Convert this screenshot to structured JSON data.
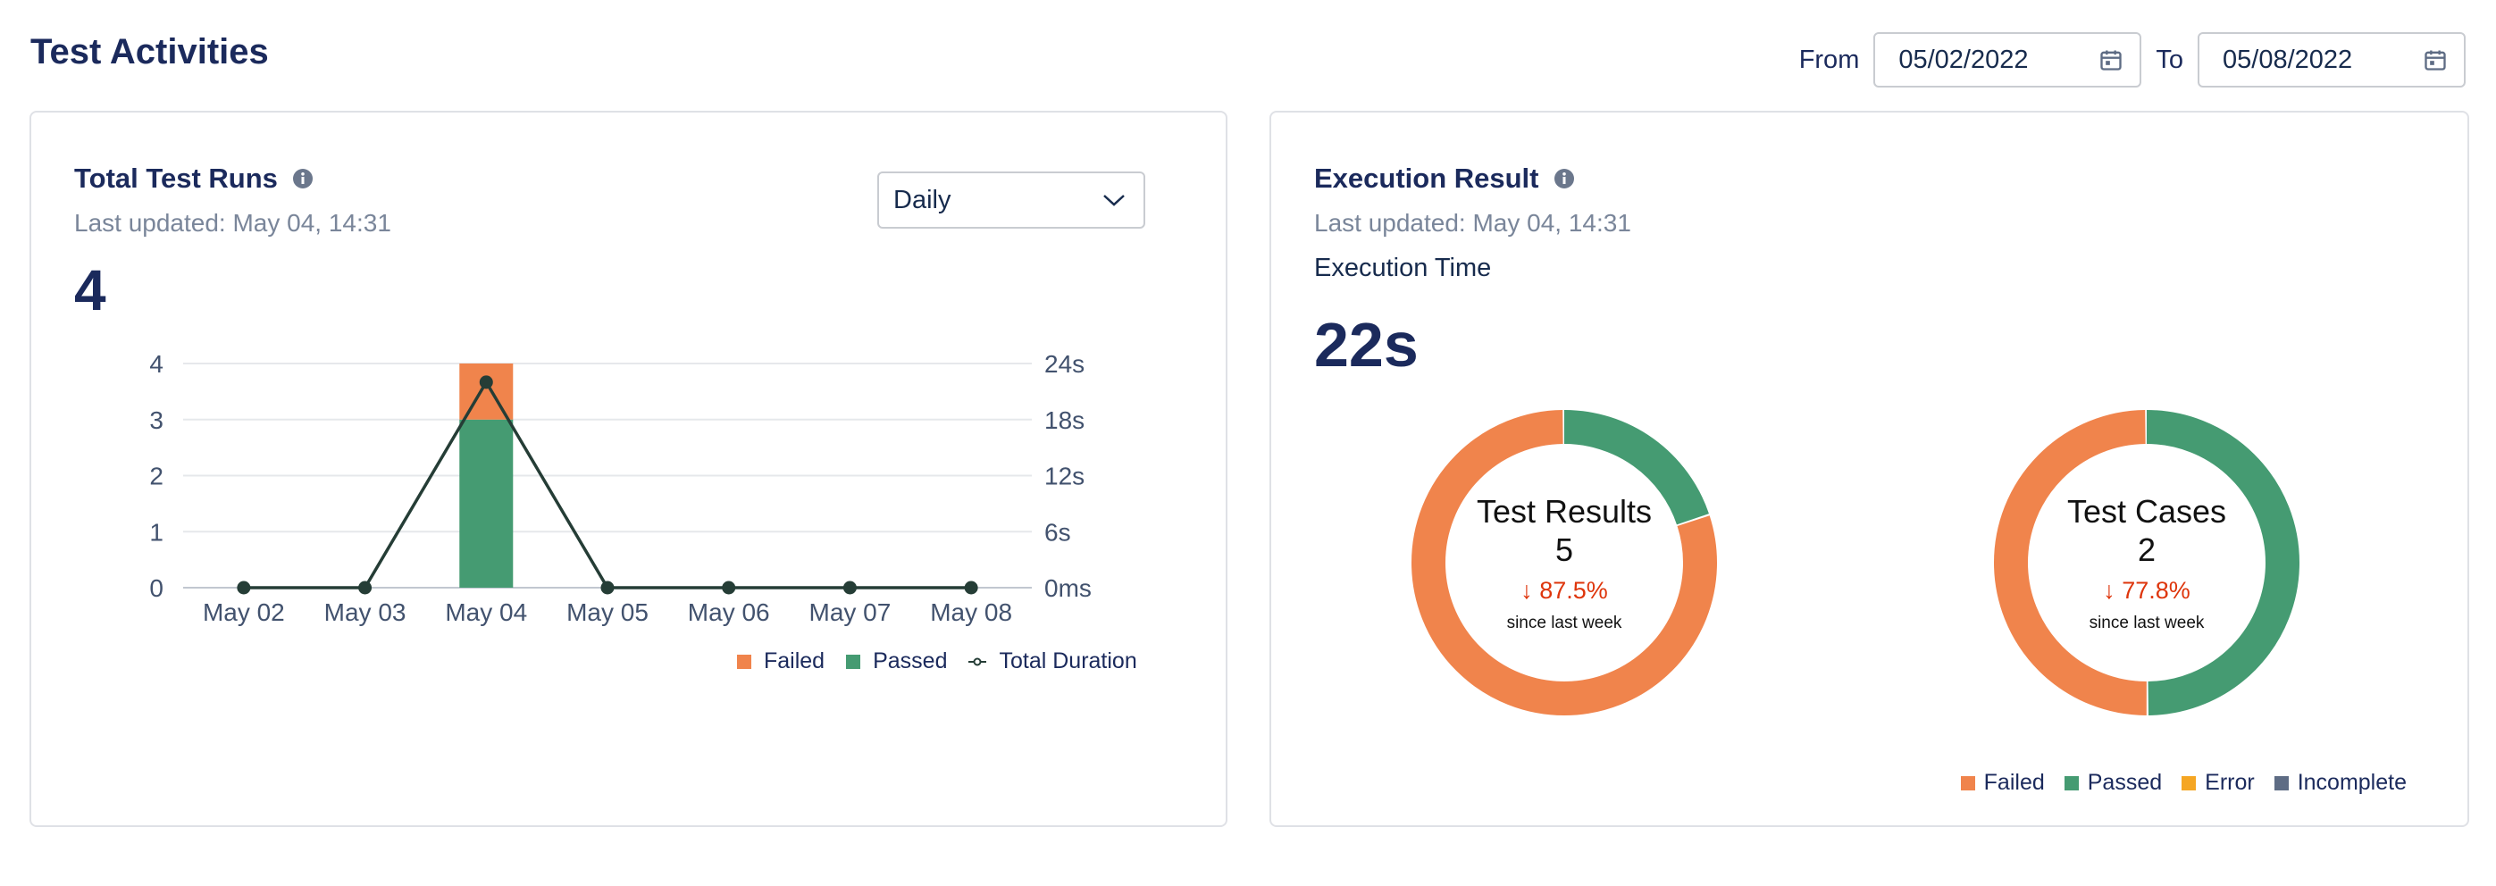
{
  "page": {
    "title": "Test Activities"
  },
  "date_filter": {
    "from_label": "From",
    "from_value": "05/02/2022",
    "to_label": "To",
    "to_value": "05/08/2022"
  },
  "total_runs": {
    "title": "Total Test Runs",
    "updated": "Last updated: May 04, 14:31",
    "value": "4",
    "interval": "Daily",
    "legend": [
      "Failed",
      "Passed",
      "Total Duration"
    ]
  },
  "execution": {
    "title": "Execution Result",
    "updated": "Last updated: May 04, 14:31",
    "time_label": "Execution Time",
    "time_value": "22s",
    "donuts": [
      {
        "title": "Test Results",
        "count": "5",
        "delta": "↓ 87.5%",
        "since": "since last week",
        "failed_fraction": 0.8,
        "passed_fraction": 0.2
      },
      {
        "title": "Test Cases",
        "count": "2",
        "delta": "↓ 77.8%",
        "since": "since last week",
        "failed_fraction": 0.5,
        "passed_fraction": 0.5
      }
    ],
    "legend": [
      "Failed",
      "Passed",
      "Error",
      "Incomplete"
    ]
  },
  "colors": {
    "failed": "#f0844c",
    "passed": "#459b72",
    "error": "#f5a623",
    "incomplete": "#5e6c84",
    "line": "#253d36"
  },
  "chart_data": {
    "type": "bar",
    "categories": [
      "May 02",
      "May 03",
      "May 04",
      "May 05",
      "May 06",
      "May 07",
      "May 08"
    ],
    "series": [
      {
        "name": "Passed",
        "values": [
          0,
          0,
          3,
          0,
          0,
          0,
          0
        ]
      },
      {
        "name": "Failed",
        "values": [
          0,
          0,
          1,
          0,
          0,
          0,
          0
        ]
      },
      {
        "name": "Total Duration",
        "type": "line",
        "axis": "right",
        "values": [
          0,
          0,
          22,
          0,
          0,
          0,
          0
        ]
      }
    ],
    "ylim": [
      0,
      4
    ],
    "y_ticks": [
      "0",
      "1",
      "2",
      "3",
      "4"
    ],
    "y2lim": [
      0,
      24
    ],
    "y2_ticks": [
      "0ms",
      "6s",
      "12s",
      "18s",
      "24s"
    ],
    "grid": true,
    "legend_position": "bottom-right"
  }
}
